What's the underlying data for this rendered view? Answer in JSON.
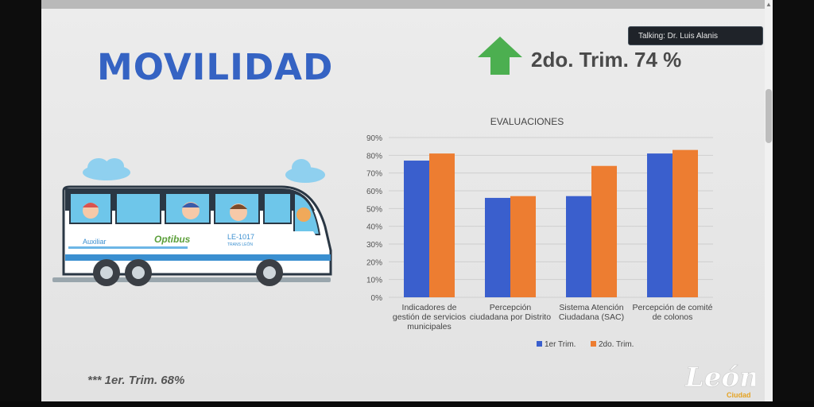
{
  "slide": {
    "title": "MOVILIDAD",
    "trim_text": "2do. Trim. 74 %",
    "footnote": "*** 1er. Trim.  68%",
    "logo_text": "León",
    "logo_sub": "Ciudad",
    "bus": {
      "side_label_left": "Auxiliar",
      "brand": "Optibus",
      "plate": "LE-1017",
      "plate_sub": "TRANS LEÓN"
    }
  },
  "meeting": {
    "talking": "Talking: Dr. Luis Alanis"
  },
  "colors": {
    "title": "#3563c3",
    "arrow": "#4caf50",
    "series1": "#3a5fcd",
    "series2": "#ed7d31"
  },
  "chart_data": {
    "type": "bar",
    "title": "EVALUACIONES",
    "categories": [
      [
        "Indicadores de",
        "gestión de servicios",
        "municipales"
      ],
      [
        "Percepción",
        "ciudadana por Distrito"
      ],
      [
        "Sistema Atención",
        "Ciudadana  (SAC)"
      ],
      [
        "Percepción de comité",
        "de colonos"
      ]
    ],
    "series": [
      {
        "name": "1er Trim.",
        "values": [
          77,
          56,
          57,
          81
        ]
      },
      {
        "name": "2do. Trim.",
        "values": [
          81,
          57,
          74,
          83
        ]
      }
    ],
    "yticks": [
      "0%",
      "10%",
      "20%",
      "30%",
      "40%",
      "50%",
      "60%",
      "70%",
      "80%",
      "90%"
    ],
    "ylim": [
      0,
      90
    ],
    "legend_position": "bottom",
    "grid": true
  }
}
